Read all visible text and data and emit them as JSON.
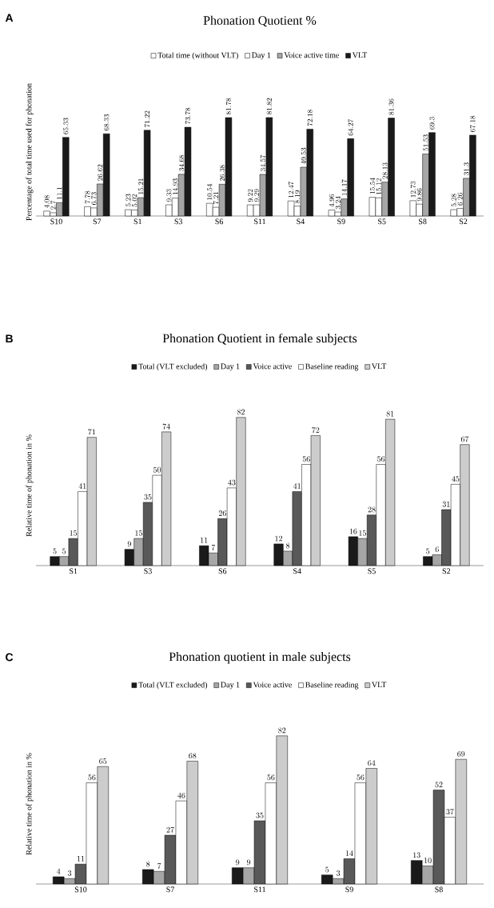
{
  "chart_data": [
    {
      "type": "bar",
      "title": "Phonation Quotient %",
      "ylabel": "Percentage of total time used for phonation",
      "annotations": [
        "A"
      ],
      "legend": "top",
      "data_labels": true,
      "categories": [
        "S10",
        "S7",
        "S1",
        "S3",
        "S6",
        "S11",
        "S4",
        "S9",
        "S5",
        "S8",
        "S2"
      ],
      "series": [
        {
          "name": "Total time (without VLT)",
          "color": "#ffffff",
          "values": [
            4.08,
            7.78,
            5.23,
            9.33,
            10.54,
            9.22,
            12.47,
            4.96,
            15.54,
            12.73,
            5.28
          ]
        },
        {
          "name": "Day 1",
          "color": "#ffffff",
          "values": [
            2.7,
            6.73,
            5.02,
            14.93,
            7.21,
            9.29,
            8.19,
            3.24,
            15.12,
            9.86,
            6.26
          ]
        },
        {
          "name": "Voice active time",
          "color": "#a6a6a6",
          "values": [
            11.1,
            26.62,
            15.21,
            34.68,
            26.38,
            34.57,
            40.53,
            14.17,
            28.13,
            51.53,
            31.3
          ]
        },
        {
          "name": "VLT",
          "color": "#1a1a1a",
          "values": [
            65.33,
            68.33,
            71.22,
            73.78,
            81.78,
            81.82,
            72.18,
            64.27,
            81.36,
            69.3,
            67.18
          ]
        }
      ]
    },
    {
      "type": "bar",
      "title": "Phonation Quotient in female subjects",
      "ylabel": "Relative time of phonation in %",
      "annotations": [
        "B"
      ],
      "legend": "top",
      "data_labels": true,
      "categories": [
        "S1",
        "S3",
        "S6",
        "S4",
        "S5",
        "S2"
      ],
      "series": [
        {
          "name": "Total (VLT excluded)",
          "color": "#1a1a1a",
          "values": [
            5,
            9,
            11,
            12,
            16,
            5
          ]
        },
        {
          "name": "Day 1",
          "color": "#a6a6a6",
          "values": [
            5,
            15,
            7,
            8,
            15,
            6
          ]
        },
        {
          "name": "Voice active",
          "color": "#595959",
          "values": [
            15,
            35,
            26,
            41,
            28,
            31
          ]
        },
        {
          "name": "Baseline reading",
          "color": "#ffffff",
          "values": [
            41,
            50,
            43,
            56,
            56,
            45
          ]
        },
        {
          "name": "VLT",
          "color": "#cccccc",
          "values": [
            71,
            74,
            82,
            72,
            81,
            67
          ]
        }
      ]
    },
    {
      "type": "bar",
      "title": "Phonation quotient in male subjects",
      "ylabel": "Relative time of phonation in %",
      "annotations": [
        "C"
      ],
      "legend": "top",
      "data_labels": true,
      "categories": [
        "S10",
        "S7",
        "S11",
        "S9",
        "S8"
      ],
      "series": [
        {
          "name": "Total (VLT excluded)",
          "color": "#1a1a1a",
          "values": [
            4,
            8,
            9,
            5,
            13
          ]
        },
        {
          "name": "Day 1",
          "color": "#a6a6a6",
          "values": [
            3,
            7,
            9,
            3,
            10
          ]
        },
        {
          "name": "Voice active",
          "color": "#595959",
          "values": [
            11,
            27,
            35,
            14,
            52
          ]
        },
        {
          "name": "Baseline reading",
          "color": "#ffffff",
          "values": [
            56,
            46,
            56,
            56,
            37
          ]
        },
        {
          "name": "VLT",
          "color": "#cccccc",
          "values": [
            65,
            68,
            82,
            64,
            69
          ]
        }
      ]
    }
  ]
}
